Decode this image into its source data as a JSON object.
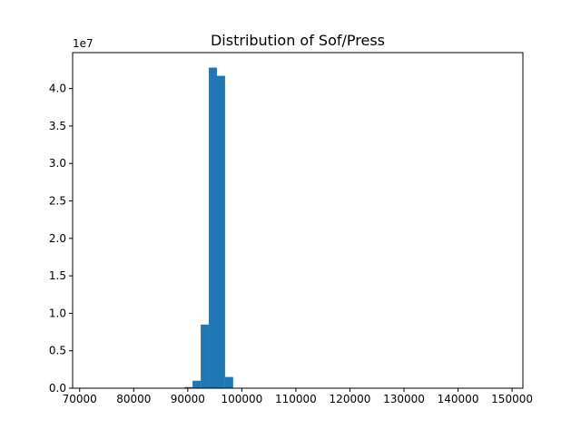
{
  "chart_data": {
    "type": "bar",
    "title": "Distribution of Sof/Press",
    "xlabel": "",
    "ylabel": "",
    "bar_color": "#1f77b4",
    "xlim": [
      68700,
      152000
    ],
    "ylim": [
      0,
      44800000
    ],
    "y_multiplier_label": "1e7",
    "y_multiplier": 10000000,
    "x_ticks": [
      70000,
      80000,
      90000,
      100000,
      110000,
      120000,
      130000,
      140000,
      150000
    ],
    "x_tick_labels": [
      "70000",
      "80000",
      "90000",
      "100000",
      "110000",
      "120000",
      "130000",
      "140000",
      "150000"
    ],
    "y_ticks": [
      0,
      5000000,
      10000000,
      15000000,
      20000000,
      25000000,
      30000000,
      35000000,
      40000000
    ],
    "y_tick_labels": [
      "0.0",
      "0.5",
      "1.0",
      "1.5",
      "2.0",
      "2.5",
      "3.0",
      "3.5",
      "4.0"
    ],
    "bins": [
      {
        "x0": 89400,
        "x1": 90900,
        "value": 150000
      },
      {
        "x0": 90900,
        "x1": 92400,
        "value": 1000000
      },
      {
        "x0": 92400,
        "x1": 93900,
        "value": 8500000
      },
      {
        "x0": 93900,
        "x1": 95400,
        "value": 42800000
      },
      {
        "x0": 95400,
        "x1": 96900,
        "value": 41700000
      },
      {
        "x0": 96900,
        "x1": 98400,
        "value": 1500000
      },
      {
        "x0": 98400,
        "x1": 99900,
        "value": 30000
      }
    ],
    "grid": false,
    "legend": "none"
  }
}
